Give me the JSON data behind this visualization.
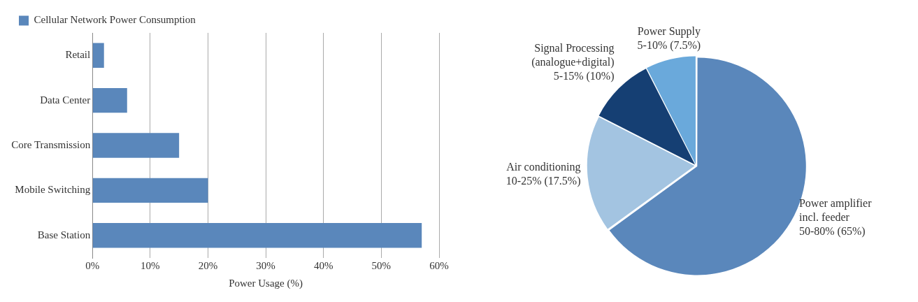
{
  "chart_data": [
    {
      "type": "bar",
      "orientation": "horizontal",
      "categories": [
        "Retail",
        "Data Center",
        "Core Transmission",
        "Mobile Switching",
        "Base Station"
      ],
      "series": [
        {
          "name": "Cellular Network Power Consumption",
          "color": "#5a87bb",
          "values": [
            2,
            6,
            15,
            20,
            57
          ]
        }
      ],
      "xlabel": "Power Usage (%)",
      "xlim": [
        0,
        60
      ],
      "xticks": [
        {
          "value": 0,
          "label": "0%"
        },
        {
          "value": 10,
          "label": "10%"
        },
        {
          "value": 20,
          "label": "20%"
        },
        {
          "value": 30,
          "label": "30%"
        },
        {
          "value": 40,
          "label": "40%"
        },
        {
          "value": 50,
          "label": "50%"
        },
        {
          "value": 60,
          "label": "60%"
        }
      ],
      "grid": "x",
      "legend": "top"
    },
    {
      "type": "pie",
      "categories": [
        "Power amplifier\nincl. feeder",
        "Air conditioning",
        "Signal Processing\n(analogue+digital)",
        "Power Supply"
      ],
      "values": [
        65,
        17.5,
        10,
        7.5
      ],
      "value_labels": [
        "50-80% (65%)",
        "10-25% (17.5%)",
        "5-15% (10%)",
        "5-10% (7.5%)"
      ],
      "colors": [
        "#5a87bb",
        "#a3c4e1",
        "#153f73",
        "#6aa9db"
      ],
      "legend": false
    }
  ]
}
